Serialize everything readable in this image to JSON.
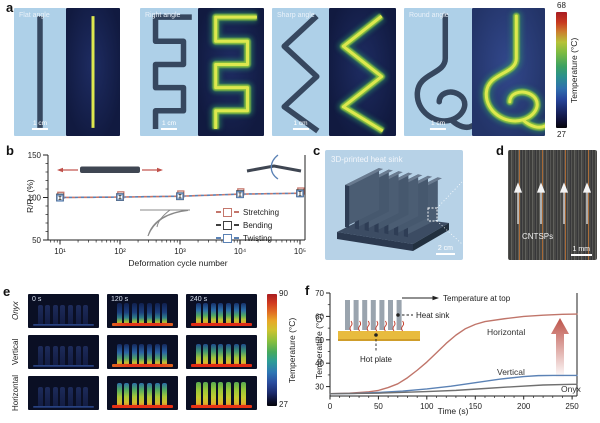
{
  "panel_a": {
    "label": "a",
    "groups": [
      {
        "title": "Flat angle",
        "scale_bar": "1 cm",
        "shape": "flat"
      },
      {
        "title": "Right angle",
        "scale_bar": "1 cm",
        "shape": "right"
      },
      {
        "title": "Sharp angle",
        "scale_bar": "1 cm",
        "shape": "sharp"
      },
      {
        "title": "Round angle",
        "scale_bar": "1 cm",
        "shape": "round"
      }
    ],
    "colorbar": {
      "max": "68",
      "min": "27",
      "label": "Temperature (°C)"
    }
  },
  "panel_b": {
    "label": "b",
    "ylabel": "R/R₀ (%)",
    "xlabel": "Deformation cycle number",
    "yticks": [
      "150",
      "100",
      "50"
    ],
    "xticks": [
      "10¹",
      "10²",
      "10³",
      "10⁴",
      "10⁵"
    ],
    "legend": [
      {
        "label": "Stretching",
        "color": "#c4766b"
      },
      {
        "label": "Bending",
        "color": "#3f3f3f"
      },
      {
        "label": "Twisting",
        "color": "#5b82b5"
      }
    ]
  },
  "panel_c": {
    "label": "c",
    "title": "3D-printed heat sink",
    "scale_bar": "2 cm"
  },
  "panel_d": {
    "label": "d",
    "annotation": "CNTSPs",
    "scale_bar": "1 mm"
  },
  "panel_e": {
    "label": "e",
    "row_labels": [
      "Onyx",
      "Vertical",
      "Horizontal"
    ],
    "time_labels": [
      "0 s",
      "120 s",
      "240 s"
    ],
    "cells": [
      [
        "cold",
        "onyx-120",
        "onyx-240"
      ],
      [
        "cold",
        "vert-120",
        "vert-240"
      ],
      [
        "cold",
        "horiz-120",
        "horiz-240"
      ]
    ],
    "colorbar": {
      "max": "90",
      "min": "27",
      "label": "Temperature (°C)"
    }
  },
  "panel_f": {
    "label": "f",
    "ylabel": "Temperature (°C)",
    "xlabel": "Time (s)",
    "yticks": [
      "70",
      "60",
      "50",
      "40",
      "30"
    ],
    "xticks": [
      "0",
      "50",
      "100",
      "150",
      "200",
      "250"
    ],
    "inset": {
      "top_label": "Temperature at top",
      "sink_label": "Heat sink",
      "plate_label": "Hot plate"
    },
    "curve_labels": {
      "horizontal": "Horizontal",
      "vertical": "Vertical",
      "onyx": "Onyx"
    }
  },
  "chart_data": [
    {
      "panel": "b",
      "type": "line",
      "x_scale": "log",
      "x": [
        10,
        100,
        1000,
        10000,
        100000
      ],
      "xlabel": "Deformation cycle number",
      "ylabel": "R/R₀ (%)",
      "ylim": [
        50,
        150
      ],
      "yticks": [
        50,
        100,
        150
      ],
      "series": [
        {
          "name": "Stretching",
          "color": "#c4766b",
          "values": [
            100.5,
            101,
            102,
            104.5,
            105.5
          ],
          "error": [
            2,
            2,
            2,
            2.5,
            3
          ]
        },
        {
          "name": "Bending",
          "color": "#3f3f3f",
          "values": [
            100,
            100.5,
            101.5,
            104,
            105
          ],
          "error": [
            2,
            2,
            2,
            2,
            2.5
          ]
        },
        {
          "name": "Twisting",
          "color": "#5b82b5",
          "values": [
            99.5,
            100.5,
            101.5,
            103.5,
            104.5
          ],
          "error": [
            2,
            2,
            2,
            2,
            2.5
          ]
        }
      ]
    },
    {
      "panel": "f",
      "type": "line",
      "xlabel": "Time (s)",
      "ylabel": "Temperature (°C)",
      "xlim": [
        0,
        255
      ],
      "ylim": [
        26,
        70
      ],
      "series": [
        {
          "name": "Horizontal",
          "color": "#c0756a",
          "x": [
            0,
            20,
            40,
            50,
            60,
            70,
            80,
            90,
            100,
            110,
            120,
            130,
            140,
            150,
            160,
            180,
            200,
            220,
            240,
            255
          ],
          "y": [
            27,
            27.2,
            27.8,
            28.4,
            29.6,
            31.2,
            33.8,
            37,
            40.5,
            44.5,
            48.5,
            52,
            54.8,
            56.6,
            57.8,
            59,
            60,
            60.5,
            60.9,
            61
          ]
        },
        {
          "name": "Vertical",
          "color": "#5b82b5",
          "x": [
            0,
            25,
            50,
            75,
            100,
            125,
            150,
            175,
            200,
            215,
            230,
            255
          ],
          "y": [
            27,
            27.1,
            27.5,
            28.1,
            29,
            30.2,
            31.7,
            33.2,
            34.3,
            34.7,
            34.8,
            34.8
          ]
        },
        {
          "name": "Onyx",
          "color": "#707070",
          "x": [
            0,
            50,
            100,
            130,
            160,
            190,
            220,
            250,
            255
          ],
          "y": [
            27,
            27.2,
            27.9,
            28.4,
            29.2,
            30,
            30.7,
            31,
            31
          ]
        }
      ]
    }
  ]
}
